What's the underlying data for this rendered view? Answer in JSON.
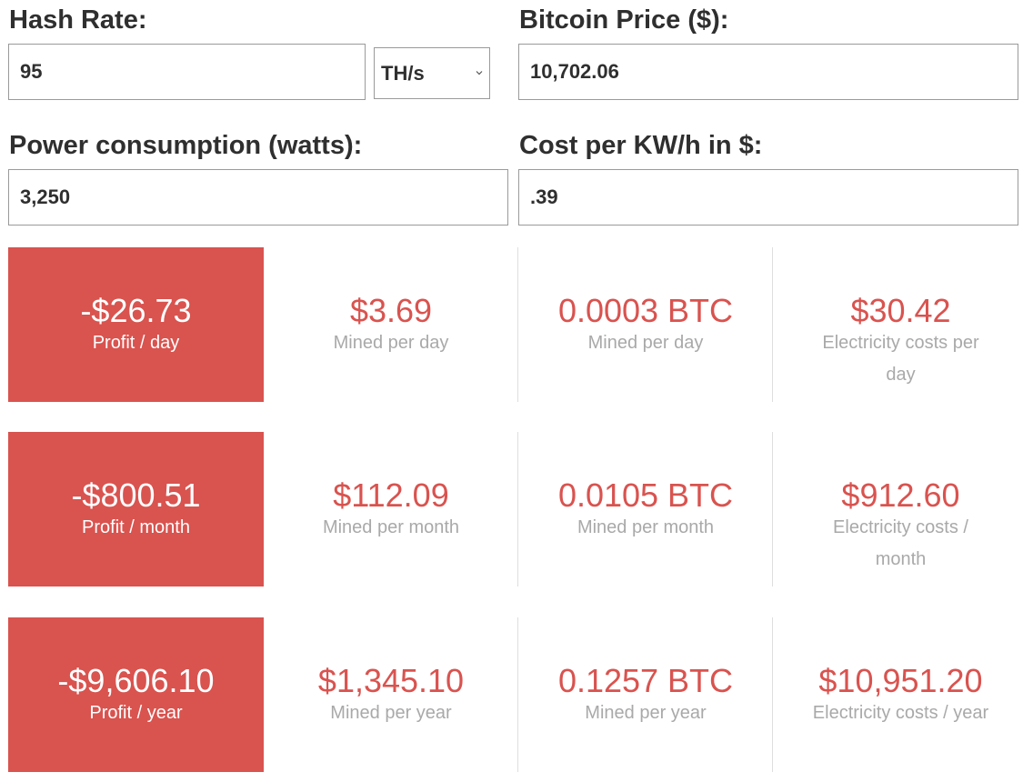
{
  "form": {
    "hash_rate_label": "Hash Rate:",
    "hash_rate_value": "95",
    "hash_unit_selected": "TH/s",
    "btc_price_label": "Bitcoin Price ($):",
    "btc_price_value": "10,702.06",
    "power_label": "Power consumption (watts):",
    "power_value": "3,250",
    "cost_label": "Cost per KW/h in $:",
    "cost_value": ".39"
  },
  "results": [
    {
      "profit": {
        "value": "-$26.73",
        "caption": "Profit / day"
      },
      "mined_usd": {
        "value": "$3.69",
        "caption": "Mined per day"
      },
      "mined_btc": {
        "value": "0.0003 BTC",
        "caption": "Mined per day"
      },
      "electricity": {
        "value": "$30.42",
        "caption_l1": "Electricity costs per",
        "caption_l2": "day"
      }
    },
    {
      "profit": {
        "value": "-$800.51",
        "caption": "Profit / month"
      },
      "mined_usd": {
        "value": "$112.09",
        "caption": "Mined per month"
      },
      "mined_btc": {
        "value": "0.0105 BTC",
        "caption": "Mined per month"
      },
      "electricity": {
        "value": "$912.60",
        "caption_l1": "Electricity costs /",
        "caption_l2": "month"
      }
    },
    {
      "profit": {
        "value": "-$9,606.10",
        "caption": "Profit / year"
      },
      "mined_usd": {
        "value": "$1,345.10",
        "caption": "Mined per year"
      },
      "mined_btc": {
        "value": "0.1257 BTC",
        "caption": "Mined per year"
      },
      "electricity": {
        "value": "$10,951.20",
        "caption_l1": "Electricity costs / year",
        "caption_l2": ""
      }
    }
  ],
  "colors": {
    "accent": "#d9534f",
    "text_dark": "#2f2f2f",
    "text_muted": "#a9a9a9",
    "border": "#9a9a9a",
    "divider": "#dedede"
  },
  "icons": {
    "select_chevron": "chevron-down-icon"
  }
}
